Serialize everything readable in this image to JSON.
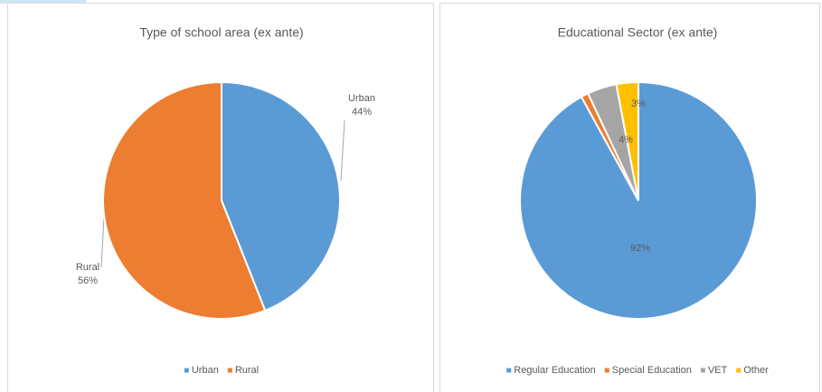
{
  "chart_data": [
    {
      "type": "pie",
      "title": "Type of school area (ex ante)",
      "categories": [
        "Urban",
        "Rural"
      ],
      "values": [
        44,
        56
      ],
      "value_labels": [
        "44%",
        "56%"
      ],
      "colors": [
        "#5b9bd5",
        "#ed7d31"
      ],
      "legend": "bottom"
    },
    {
      "type": "pie",
      "title": "Educational Sector (ex ante)",
      "categories": [
        "Regular Education",
        "Special Education",
        "VET",
        "Other"
      ],
      "values": [
        92,
        1,
        4,
        3
      ],
      "value_labels": [
        "92%",
        null,
        "4%",
        "3%"
      ],
      "colors": [
        "#5b9bd5",
        "#ed7d31",
        "#a5a5a5",
        "#ffc000"
      ],
      "legend": "bottom"
    }
  ]
}
